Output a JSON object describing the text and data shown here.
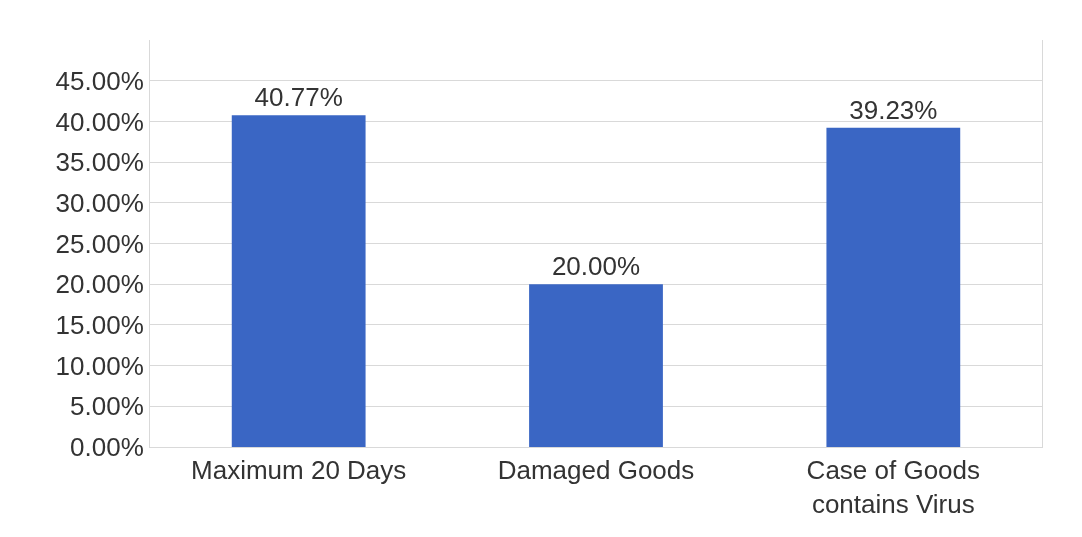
{
  "chart_data": {
    "type": "bar",
    "categories": [
      "Maximum 20 Days",
      "Damaged Goods",
      "Case of Goods contains Virus"
    ],
    "values": [
      40.77,
      20.0,
      39.23
    ],
    "value_labels": [
      "40.77%",
      "20.00%",
      "39.23%"
    ],
    "color": "#3a66c4",
    "ylim": [
      0,
      50
    ],
    "yticks": [
      {
        "value": 0,
        "label": "0.00%"
      },
      {
        "value": 5,
        "label": "5.00%"
      },
      {
        "value": 10,
        "label": "10.00%"
      },
      {
        "value": 15,
        "label": "15.00%"
      },
      {
        "value": 20,
        "label": "20.00%"
      },
      {
        "value": 25,
        "label": "25.00%"
      },
      {
        "value": 30,
        "label": "30.00%"
      },
      {
        "value": 35,
        "label": "35.00%"
      },
      {
        "value": 40,
        "label": "40.00%"
      },
      {
        "value": 45,
        "label": "45.00%"
      }
    ],
    "grid": "y"
  }
}
